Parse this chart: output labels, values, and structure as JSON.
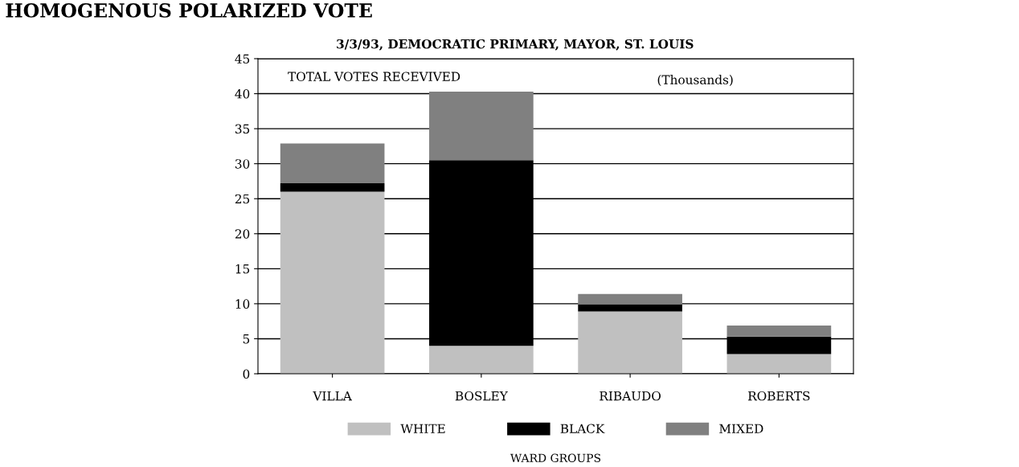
{
  "chart_data": {
    "type": "bar",
    "stacked": true,
    "title": "HOMOGENOUS POLARIZED VOTE",
    "subtitle": "3/3/93, DEMOCRATIC PRIMARY, MAYOR, ST. LOUIS",
    "xlabel": "WARD GROUPS",
    "annotations": [
      "TOTAL VOTES RECEVIVED",
      "(Thousands)"
    ],
    "categories": [
      "VILLA",
      "BOSLEY",
      "RIBAUDO",
      "ROBERTS"
    ],
    "series": [
      {
        "name": "WHITE",
        "color": "#c0c0c0",
        "values": [
          26.0,
          4.0,
          8.9,
          2.8
        ]
      },
      {
        "name": "BLACK",
        "color": "#000000",
        "values": [
          1.2,
          26.5,
          1.0,
          2.5
        ]
      },
      {
        "name": "MIXED",
        "color": "#808080",
        "values": [
          5.7,
          9.8,
          1.5,
          1.6
        ]
      }
    ],
    "ylim": [
      0,
      45
    ],
    "yticks": [
      0,
      5,
      10,
      15,
      20,
      25,
      30,
      35,
      40,
      45
    ],
    "grid": "y",
    "legend": "bottom"
  }
}
